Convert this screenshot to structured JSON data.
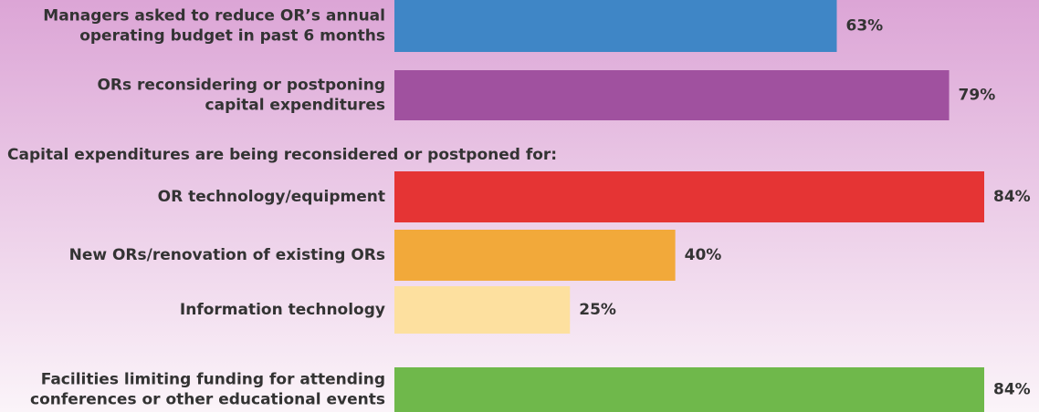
{
  "chart_data": {
    "type": "bar",
    "orientation": "horizontal",
    "annotation": "Capital expenditures are being reconsidered or postponed for:",
    "categories": [
      [
        "Managers asked to reduce OR’s annual",
        "operating budget in past 6 months"
      ],
      [
        "ORs reconsidering or postponing",
        "capital expenditures"
      ],
      [
        "OR technology/equipment"
      ],
      [
        "New ORs/renovation of existing ORs"
      ],
      [
        "Information technology"
      ],
      [
        "Facilities limiting funding for attending",
        "conferences or other educational events"
      ]
    ],
    "values": [
      63,
      79,
      84,
      40,
      25,
      84
    ],
    "value_labels": [
      "63%",
      "79%",
      "84%",
      "40%",
      "25%",
      "84%"
    ],
    "colors": [
      "#3f86c6",
      "#a0519f",
      "#e53434",
      "#f2a93a",
      "#fde09f",
      "#6fb84b"
    ]
  }
}
